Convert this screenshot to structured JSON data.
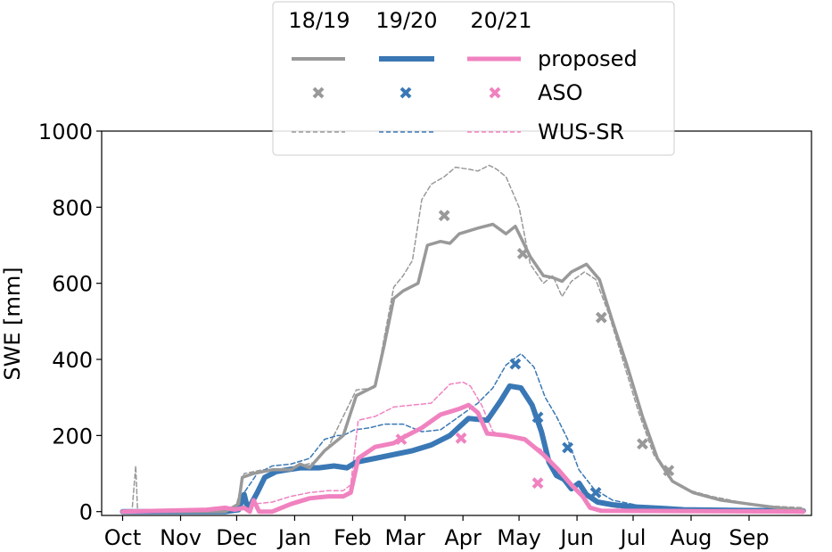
{
  "chart_data": {
    "type": "line",
    "title": "",
    "xlabel": "",
    "ylabel": "SWE [mm]",
    "ylim": [
      0,
      1000
    ],
    "xlim_days": [
      -9,
      364
    ],
    "yticks": [
      "0",
      "200",
      "400",
      "600",
      "800",
      "1000"
    ],
    "xtick_labels": [
      "Oct",
      "Nov",
      "Dec",
      "Jan",
      "Feb",
      "Mar",
      "Apr",
      "May",
      "Jun",
      "Jul",
      "Aug",
      "Sep"
    ],
    "month_start_day": [
      0,
      31,
      61,
      92,
      123,
      151,
      182,
      212,
      243,
      273,
      304,
      335
    ],
    "grid": false,
    "legend": {
      "placement": "top-center",
      "column_headers": [
        "18/19",
        "19/20",
        "20/21"
      ],
      "row_labels": [
        "proposed",
        "ASO",
        "WUS-SR"
      ]
    },
    "colors": {
      "18/19": "#999999",
      "19/20": "#3a78b5",
      "20/21": "#f082c0"
    },
    "series": [
      {
        "name": "18/19",
        "method": "proposed",
        "points": [
          [
            0,
            0
          ],
          [
            55,
            0
          ],
          [
            62,
            20
          ],
          [
            64,
            90
          ],
          [
            70,
            100
          ],
          [
            80,
            110
          ],
          [
            90,
            110
          ],
          [
            95,
            125
          ],
          [
            100,
            115
          ],
          [
            108,
            160
          ],
          [
            118,
            200
          ],
          [
            125,
            305
          ],
          [
            135,
            330
          ],
          [
            140,
            440
          ],
          [
            145,
            560
          ],
          [
            150,
            580
          ],
          [
            158,
            600
          ],
          [
            163,
            700
          ],
          [
            170,
            710
          ],
          [
            175,
            705
          ],
          [
            180,
            730
          ],
          [
            190,
            745
          ],
          [
            198,
            755
          ],
          [
            205,
            730
          ],
          [
            210,
            750
          ],
          [
            218,
            670
          ],
          [
            225,
            620
          ],
          [
            230,
            615
          ],
          [
            235,
            605
          ],
          [
            240,
            630
          ],
          [
            248,
            650
          ],
          [
            255,
            610
          ],
          [
            262,
            500
          ],
          [
            270,
            380
          ],
          [
            278,
            250
          ],
          [
            286,
            140
          ],
          [
            294,
            80
          ],
          [
            305,
            50
          ],
          [
            320,
            30
          ],
          [
            335,
            20
          ],
          [
            350,
            10
          ],
          [
            364,
            5
          ]
        ]
      },
      {
        "name": "19/20",
        "method": "proposed",
        "points": [
          [
            0,
            0
          ],
          [
            55,
            0
          ],
          [
            62,
            5
          ],
          [
            65,
            45
          ],
          [
            67,
            5
          ],
          [
            72,
            50
          ],
          [
            76,
            90
          ],
          [
            82,
            105
          ],
          [
            88,
            110
          ],
          [
            95,
            115
          ],
          [
            105,
            115
          ],
          [
            113,
            120
          ],
          [
            120,
            115
          ],
          [
            125,
            130
          ],
          [
            135,
            140
          ],
          [
            145,
            150
          ],
          [
            155,
            160
          ],
          [
            165,
            175
          ],
          [
            175,
            200
          ],
          [
            185,
            245
          ],
          [
            195,
            240
          ],
          [
            202,
            290
          ],
          [
            207,
            330
          ],
          [
            213,
            325
          ],
          [
            219,
            280
          ],
          [
            224,
            210
          ],
          [
            228,
            130
          ],
          [
            232,
            95
          ],
          [
            236,
            85
          ],
          [
            240,
            60
          ],
          [
            244,
            75
          ],
          [
            248,
            45
          ],
          [
            254,
            25
          ],
          [
            262,
            18
          ],
          [
            275,
            12
          ],
          [
            290,
            8
          ],
          [
            300,
            5
          ],
          [
            330,
            3
          ],
          [
            364,
            2
          ]
        ]
      },
      {
        "name": "20/21",
        "method": "proposed",
        "points": [
          [
            0,
            0
          ],
          [
            45,
            5
          ],
          [
            55,
            10
          ],
          [
            60,
            5
          ],
          [
            65,
            10
          ],
          [
            68,
            0
          ],
          [
            70,
            30
          ],
          [
            73,
            0
          ],
          [
            80,
            0
          ],
          [
            90,
            20
          ],
          [
            100,
            35
          ],
          [
            110,
            40
          ],
          [
            118,
            40
          ],
          [
            122,
            50
          ],
          [
            126,
            140
          ],
          [
            135,
            170
          ],
          [
            145,
            180
          ],
          [
            150,
            195
          ],
          [
            160,
            220
          ],
          [
            170,
            255
          ],
          [
            180,
            270
          ],
          [
            185,
            280
          ],
          [
            190,
            260
          ],
          [
            195,
            205
          ],
          [
            205,
            200
          ],
          [
            215,
            190
          ],
          [
            225,
            150
          ],
          [
            233,
            110
          ],
          [
            240,
            70
          ],
          [
            246,
            40
          ],
          [
            250,
            10
          ],
          [
            256,
            2
          ],
          [
            364,
            0
          ]
        ]
      },
      {
        "name": "18/19",
        "method": "WUS-SR",
        "points": [
          [
            0,
            0
          ],
          [
            5,
            0
          ],
          [
            7,
            120
          ],
          [
            8,
            0
          ],
          [
            60,
            0
          ],
          [
            65,
            100
          ],
          [
            75,
            110
          ],
          [
            85,
            105
          ],
          [
            95,
            120
          ],
          [
            103,
            130
          ],
          [
            110,
            170
          ],
          [
            118,
            250
          ],
          [
            125,
            320
          ],
          [
            135,
            325
          ],
          [
            140,
            460
          ],
          [
            145,
            590
          ],
          [
            150,
            620
          ],
          [
            155,
            660
          ],
          [
            160,
            820
          ],
          [
            165,
            860
          ],
          [
            172,
            880
          ],
          [
            178,
            905
          ],
          [
            185,
            900
          ],
          [
            190,
            895
          ],
          [
            196,
            910
          ],
          [
            200,
            900
          ],
          [
            205,
            880
          ],
          [
            212,
            800
          ],
          [
            218,
            650
          ],
          [
            225,
            600
          ],
          [
            230,
            620
          ],
          [
            235,
            565
          ],
          [
            240,
            605
          ],
          [
            247,
            630
          ],
          [
            253,
            610
          ],
          [
            260,
            520
          ],
          [
            268,
            390
          ],
          [
            276,
            260
          ],
          [
            284,
            150
          ],
          [
            292,
            90
          ],
          [
            300,
            60
          ],
          [
            315,
            40
          ],
          [
            330,
            25
          ],
          [
            345,
            15
          ],
          [
            364,
            10
          ]
        ]
      },
      {
        "name": "19/20",
        "method": "WUS-SR",
        "points": [
          [
            0,
            0
          ],
          [
            55,
            0
          ],
          [
            62,
            5
          ],
          [
            65,
            50
          ],
          [
            72,
            100
          ],
          [
            80,
            120
          ],
          [
            90,
            125
          ],
          [
            100,
            140
          ],
          [
            108,
            190
          ],
          [
            115,
            200
          ],
          [
            118,
            200
          ],
          [
            124,
            215
          ],
          [
            132,
            220
          ],
          [
            140,
            230
          ],
          [
            150,
            230
          ],
          [
            160,
            210
          ],
          [
            170,
            215
          ],
          [
            180,
            250
          ],
          [
            190,
            285
          ],
          [
            198,
            325
          ],
          [
            205,
            385
          ],
          [
            213,
            415
          ],
          [
            220,
            380
          ],
          [
            226,
            300
          ],
          [
            232,
            250
          ],
          [
            238,
            190
          ],
          [
            244,
            110
          ],
          [
            252,
            60
          ],
          [
            262,
            30
          ],
          [
            280,
            12
          ],
          [
            300,
            6
          ],
          [
            330,
            3
          ],
          [
            364,
            2
          ]
        ]
      },
      {
        "name": "20/21",
        "method": "WUS-SR",
        "points": [
          [
            0,
            0
          ],
          [
            60,
            0
          ],
          [
            65,
            10
          ],
          [
            70,
            20
          ],
          [
            80,
            25
          ],
          [
            90,
            40
          ],
          [
            100,
            50
          ],
          [
            110,
            55
          ],
          [
            118,
            55
          ],
          [
            122,
            70
          ],
          [
            126,
            240
          ],
          [
            135,
            250
          ],
          [
            145,
            275
          ],
          [
            155,
            280
          ],
          [
            165,
            285
          ],
          [
            175,
            335
          ],
          [
            182,
            340
          ],
          [
            186,
            330
          ],
          [
            192,
            280
          ],
          [
            198,
            210
          ],
          [
            205,
            200
          ],
          [
            215,
            185
          ],
          [
            225,
            160
          ],
          [
            235,
            100
          ],
          [
            245,
            45
          ],
          [
            255,
            20
          ],
          [
            265,
            10
          ],
          [
            280,
            5
          ],
          [
            364,
            2
          ]
        ]
      }
    ],
    "aso": [
      {
        "name": "18/19",
        "points": [
          [
            172,
            778
          ],
          [
            214,
            678
          ],
          [
            256,
            510
          ],
          [
            278,
            178
          ],
          [
            292,
            108
          ]
        ]
      },
      {
        "name": "19/20",
        "points": [
          [
            210,
            388
          ],
          [
            222,
            248
          ],
          [
            238,
            168
          ],
          [
            253,
            50
          ]
        ]
      },
      {
        "name": "20/21",
        "points": [
          [
            149,
            190
          ],
          [
            181,
            193
          ],
          [
            222,
            75
          ]
        ]
      }
    ]
  }
}
